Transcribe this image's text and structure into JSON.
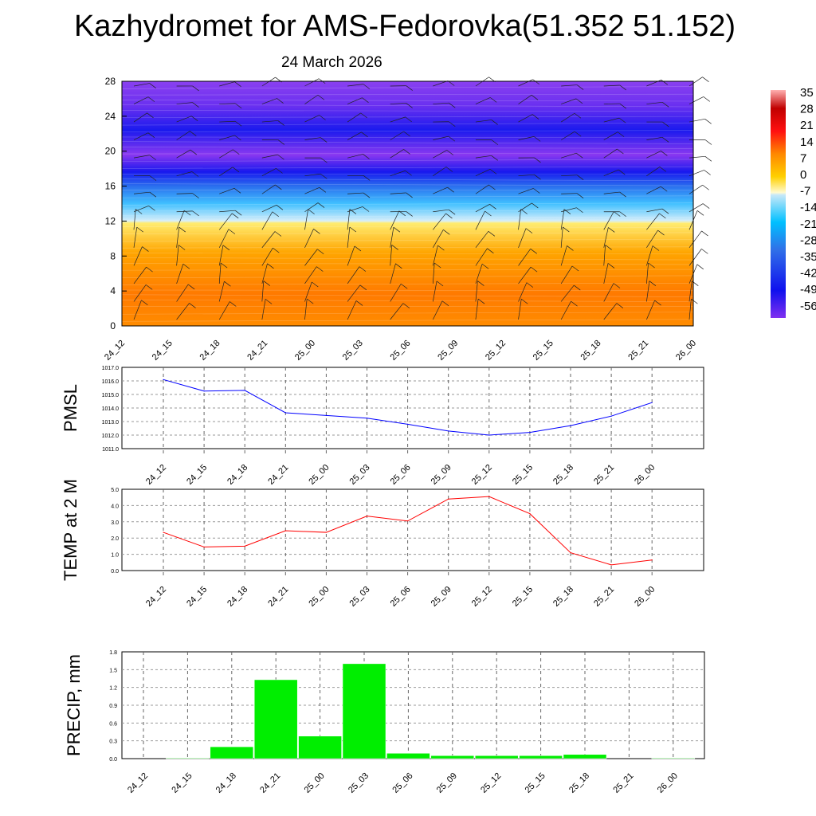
{
  "header": {
    "title": "Kazhydromet for AMS-Fedorovka(51.352 51.152)",
    "date": "24 March 2026"
  },
  "chart_data": [
    {
      "type": "heatmap",
      "title": "Temperature cross-section with wind barbs",
      "ylabel": "",
      "ylim": [
        0,
        28
      ],
      "yticks": [
        "0",
        "4",
        "8",
        "12",
        "16",
        "20",
        "24",
        "28"
      ],
      "xticks": [
        "24_12",
        "24_15",
        "24_18",
        "24_21",
        "25_00",
        "25_03",
        "25_06",
        "25_09",
        "25_12",
        "25_15",
        "25_18",
        "25_21",
        "26_00"
      ],
      "colorbar": {
        "labels": [
          "35",
          "28",
          "21",
          "14",
          "7",
          "0",
          "-7",
          "-14",
          "-21",
          "-28",
          "-35",
          "-42",
          "-49",
          "-56"
        ],
        "range": [
          -60,
          38
        ]
      }
    },
    {
      "type": "line",
      "ylabel": "PMSL",
      "ylim": [
        1011,
        1017
      ],
      "yticks": [
        "1011.0",
        "1012.0",
        "1013.0",
        "1014.0",
        "1015.0",
        "1016.0",
        "1017.0"
      ],
      "x": [
        "24_12",
        "24_15",
        "24_18",
        "24_21",
        "25_00",
        "25_03",
        "25_06",
        "25_09",
        "25_12",
        "25_15",
        "25_18",
        "25_21",
        "26_00"
      ],
      "values": [
        1016.1,
        1015.25,
        1015.3,
        1013.65,
        1013.45,
        1013.25,
        1012.8,
        1012.3,
        1012.0,
        1012.2,
        1012.7,
        1013.4,
        1014.4
      ],
      "color": "#0000ff"
    },
    {
      "type": "line",
      "ylabel": "TEMP at 2 M",
      "ylim": [
        0,
        5
      ],
      "yticks": [
        "0.0",
        "1.0",
        "2.0",
        "3.0",
        "4.0",
        "5.0"
      ],
      "x": [
        "24_12",
        "24_15",
        "24_18",
        "24_21",
        "25_00",
        "25_03",
        "25_06",
        "25_09",
        "25_12",
        "25_15",
        "25_18",
        "25_21",
        "26_00"
      ],
      "values": [
        2.35,
        1.45,
        1.5,
        2.45,
        2.35,
        3.35,
        3.05,
        4.4,
        4.55,
        3.5,
        1.1,
        0.35,
        0.65
      ],
      "color": "#ff0000"
    },
    {
      "type": "bar",
      "ylabel": "PRECIP, mm",
      "ylim": [
        0,
        1.8
      ],
      "yticks": [
        "0.0",
        "0.3",
        "0.6",
        "0.9",
        "1.2",
        "1.5",
        "1.8"
      ],
      "categories": [
        "24_12",
        "24_15",
        "24_18",
        "24_21",
        "25_00",
        "25_03",
        "25_06",
        "25_09",
        "25_12",
        "25_15",
        "25_18",
        "25_21",
        "26_00"
      ],
      "values": [
        0,
        0.01,
        0.2,
        1.33,
        0.38,
        1.6,
        0.09,
        0.05,
        0.05,
        0.05,
        0.07,
        0,
        0.01
      ],
      "color": "#00ee00"
    }
  ]
}
